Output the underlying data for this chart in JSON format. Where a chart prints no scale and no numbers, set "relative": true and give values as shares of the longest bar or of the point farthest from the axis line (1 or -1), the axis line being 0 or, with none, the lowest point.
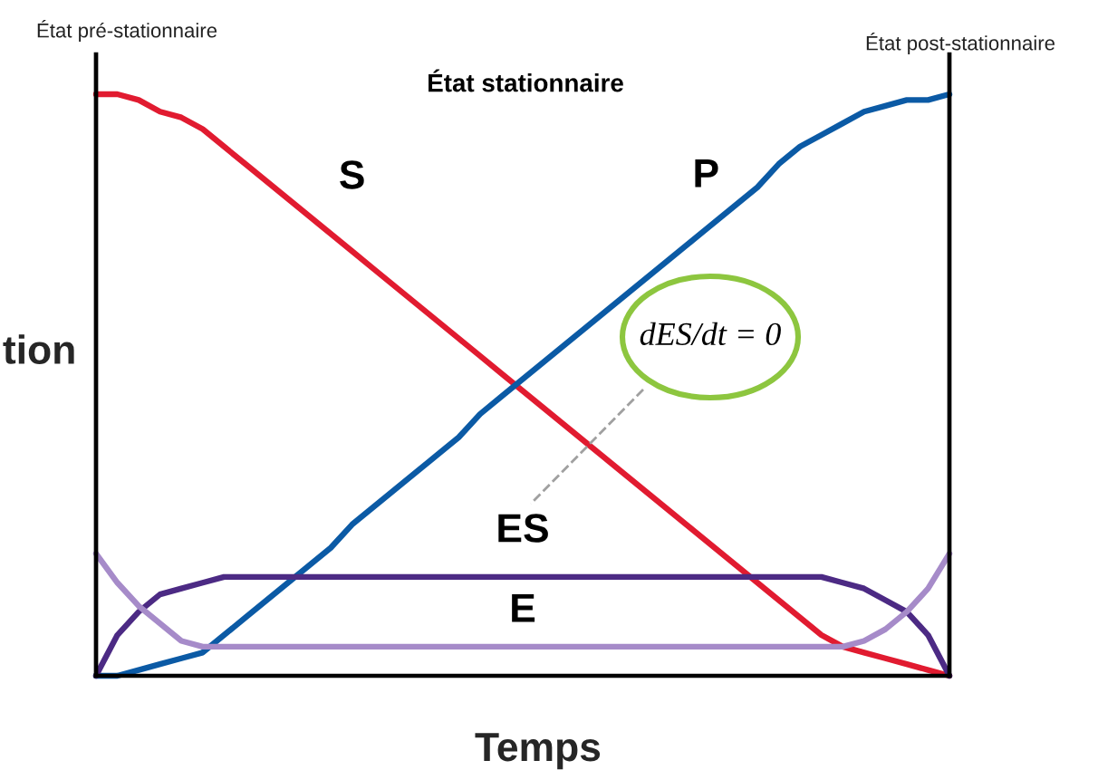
{
  "chart_data": {
    "type": "line",
    "relative": true,
    "xlabel": "Temps",
    "ylabel": "tion",
    "categories": [
      null,
      null,
      null,
      null,
      null,
      null,
      null,
      null,
      null,
      null,
      null,
      null,
      null,
      null,
      null,
      null,
      null,
      null,
      null,
      null,
      null,
      null,
      null,
      null,
      null,
      null,
      null,
      null,
      null,
      null,
      null,
      null,
      null,
      null,
      null,
      null,
      null,
      null,
      null,
      null,
      null
    ],
    "series": [
      {
        "name": "S",
        "color": "#e11b30",
        "values": [
          1.0,
          1.0,
          0.99,
          0.97,
          0.96,
          0.94,
          0.91,
          0.88,
          0.85,
          0.82,
          0.79,
          0.76,
          0.73,
          0.7,
          0.67,
          0.64,
          0.61,
          0.58,
          0.55,
          0.52,
          0.49,
          0.46,
          0.43,
          0.4,
          0.37,
          0.34,
          0.31,
          0.28,
          0.25,
          0.22,
          0.19,
          0.16,
          0.13,
          0.1,
          0.07,
          0.05,
          0.04,
          0.03,
          0.02,
          0.01,
          0.0
        ]
      },
      {
        "name": "P",
        "color": "#0b5aa5",
        "values": [
          0.0,
          0.0,
          0.01,
          0.02,
          0.03,
          0.04,
          0.07,
          0.1,
          0.13,
          0.16,
          0.19,
          0.22,
          0.26,
          0.29,
          0.32,
          0.35,
          0.38,
          0.41,
          0.45,
          0.48,
          0.51,
          0.54,
          0.57,
          0.6,
          0.63,
          0.66,
          0.69,
          0.72,
          0.75,
          0.78,
          0.81,
          0.84,
          0.88,
          0.91,
          0.93,
          0.95,
          0.97,
          0.98,
          0.99,
          0.99,
          1.0
        ]
      },
      {
        "name": "ES",
        "color": "#4c2a84",
        "values": [
          0.0,
          0.07,
          0.11,
          0.14,
          0.15,
          0.16,
          0.17,
          0.17,
          0.17,
          0.17,
          0.17,
          0.17,
          0.17,
          0.17,
          0.17,
          0.17,
          0.17,
          0.17,
          0.17,
          0.17,
          0.17,
          0.17,
          0.17,
          0.17,
          0.17,
          0.17,
          0.17,
          0.17,
          0.17,
          0.17,
          0.17,
          0.17,
          0.17,
          0.17,
          0.17,
          0.16,
          0.15,
          0.13,
          0.11,
          0.07,
          0.0
        ]
      },
      {
        "name": "E",
        "color": "#a68bc9",
        "values": [
          0.21,
          0.16,
          0.12,
          0.09,
          0.06,
          0.05,
          0.05,
          0.05,
          0.05,
          0.05,
          0.05,
          0.05,
          0.05,
          0.05,
          0.05,
          0.05,
          0.05,
          0.05,
          0.05,
          0.05,
          0.05,
          0.05,
          0.05,
          0.05,
          0.05,
          0.05,
          0.05,
          0.05,
          0.05,
          0.05,
          0.05,
          0.05,
          0.05,
          0.05,
          0.05,
          0.05,
          0.06,
          0.08,
          0.11,
          0.15,
          0.21
        ]
      }
    ],
    "annotations": [
      "État pré-stationnaire",
      "État stationnaire",
      "État post-stationnaire",
      "dES/dt = 0"
    ],
    "marker": "none",
    "line_style": "solid"
  }
}
